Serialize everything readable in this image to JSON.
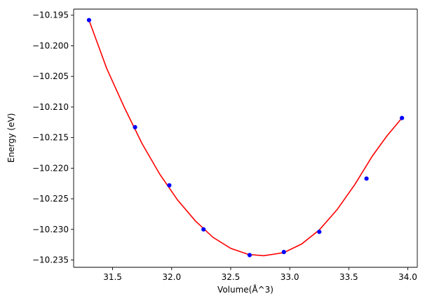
{
  "chart_data": {
    "type": "scatter",
    "title": "",
    "xlabel": "Volume(Å^3)",
    "ylabel": "Energy (eV)",
    "xlim": [
      31.17,
      34.08
    ],
    "ylim": [
      -10.2362,
      -10.194
    ],
    "xticks": [
      31.5,
      32.0,
      32.5,
      33.0,
      33.5,
      34.0
    ],
    "xtick_labels": [
      "31.5",
      "32.0",
      "32.5",
      "33.0",
      "33.5",
      "34.0"
    ],
    "yticks": [
      -10.195,
      -10.2,
      -10.205,
      -10.21,
      -10.215,
      -10.22,
      -10.225,
      -10.23,
      -10.235
    ],
    "ytick_labels": [
      "−10.195",
      "−10.200",
      "−10.205",
      "−10.210",
      "−10.215",
      "−10.220",
      "−10.225",
      "−10.230",
      "−10.235"
    ],
    "grid": false,
    "legend": "none",
    "series": [
      {
        "kind": "scatter",
        "color": "#0000ff",
        "points": [
          [
            31.3,
            -10.1958
          ],
          [
            31.69,
            -10.2133
          ],
          [
            31.98,
            -10.2228
          ],
          [
            32.27,
            -10.23
          ],
          [
            32.66,
            -10.2342
          ],
          [
            32.95,
            -10.2337
          ],
          [
            33.25,
            -10.2304
          ],
          [
            33.65,
            -10.2217
          ],
          [
            33.95,
            -10.2118
          ]
        ]
      },
      {
        "kind": "line",
        "color": "#ff0000",
        "points": [
          [
            31.3,
            -10.1958
          ],
          [
            31.45,
            -10.2037
          ],
          [
            31.6,
            -10.2101
          ],
          [
            31.75,
            -10.216
          ],
          [
            31.9,
            -10.221
          ],
          [
            32.05,
            -10.2252
          ],
          [
            32.2,
            -10.2286
          ],
          [
            32.35,
            -10.2313
          ],
          [
            32.5,
            -10.2331
          ],
          [
            32.65,
            -10.2341
          ],
          [
            32.78,
            -10.2343
          ],
          [
            32.95,
            -10.2338
          ],
          [
            33.1,
            -10.2324
          ],
          [
            33.25,
            -10.2301
          ],
          [
            33.4,
            -10.2268
          ],
          [
            33.55,
            -10.2227
          ],
          [
            33.7,
            -10.218
          ],
          [
            33.82,
            -10.2148
          ],
          [
            33.95,
            -10.2118
          ]
        ]
      }
    ]
  }
}
